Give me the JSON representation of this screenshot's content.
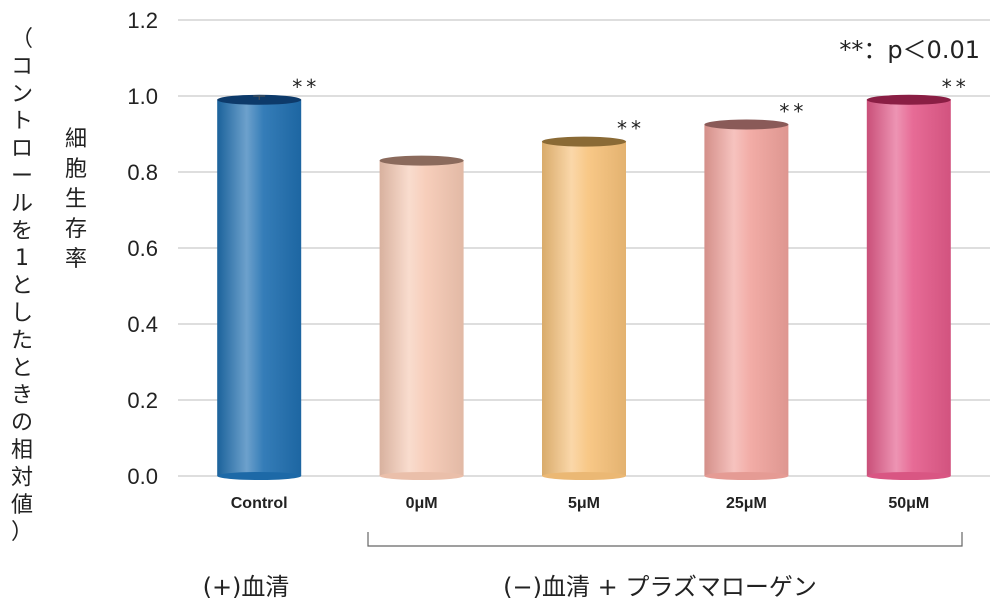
{
  "chart_data": {
    "type": "bar",
    "categories": [
      "Control",
      "0μM",
      "5μM",
      "25μM",
      "50μM"
    ],
    "values": [
      0.99,
      0.83,
      0.88,
      0.925,
      0.99
    ],
    "error": [
      0.01,
      0,
      0,
      0,
      0
    ],
    "significance": [
      "**",
      "",
      "**",
      "**",
      "**"
    ],
    "colors": [
      "#1f6fb0",
      "#f6c9b3",
      "#f7c27a",
      "#f1a39c",
      "#e45a8a"
    ],
    "cap_colors": [
      "#0d3a6a",
      "#8b6a5c",
      "#8a6a35",
      "#8a5a58",
      "#8a1e44"
    ],
    "ylim": [
      0,
      1.2
    ],
    "yticks": [
      "0.0",
      "0.2",
      "0.4",
      "0.6",
      "0.8",
      "1.0",
      "1.2"
    ],
    "ylabel_outer": "（コントロールを1としたときの相対値）",
    "ylabel_inner": "細胞生存率",
    "annotation": "**：p＜0.01",
    "groups": [
      {
        "label": "(+)血清"
      },
      {
        "label": "(−)血清 + プラズマローゲン"
      }
    ],
    "grid": true
  }
}
